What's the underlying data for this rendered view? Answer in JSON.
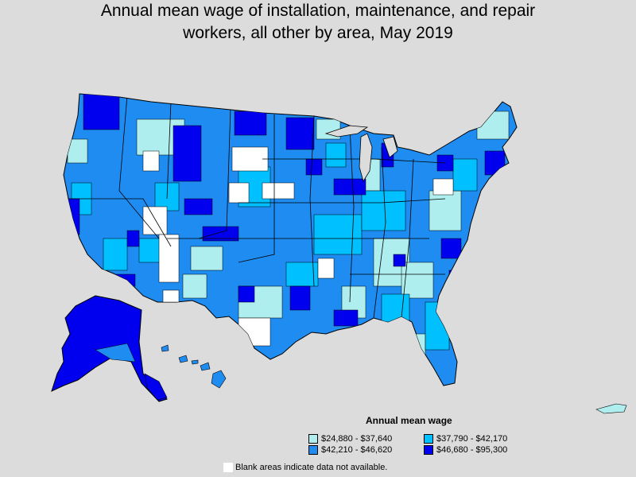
{
  "title_line1": "Annual mean wage of installation, maintenance, and repair",
  "title_line2": "workers, all other by area, May 2019",
  "legend": {
    "title": "Annual mean wage",
    "items": [
      {
        "label": "$24,880 - $37,640",
        "color": "#aeeeee"
      },
      {
        "label": "$37,790 - $42,170",
        "color": "#00c0ff"
      },
      {
        "label": "$42,210 - $46,620",
        "color": "#1e8cf0"
      },
      {
        "label": "$46,680 - $95,300",
        "color": "#0000ee"
      }
    ]
  },
  "note": "Blank areas indicate data not available.",
  "colors": {
    "background": "#dcdcdc",
    "no_data": "#ffffff",
    "border": "#000000"
  }
}
